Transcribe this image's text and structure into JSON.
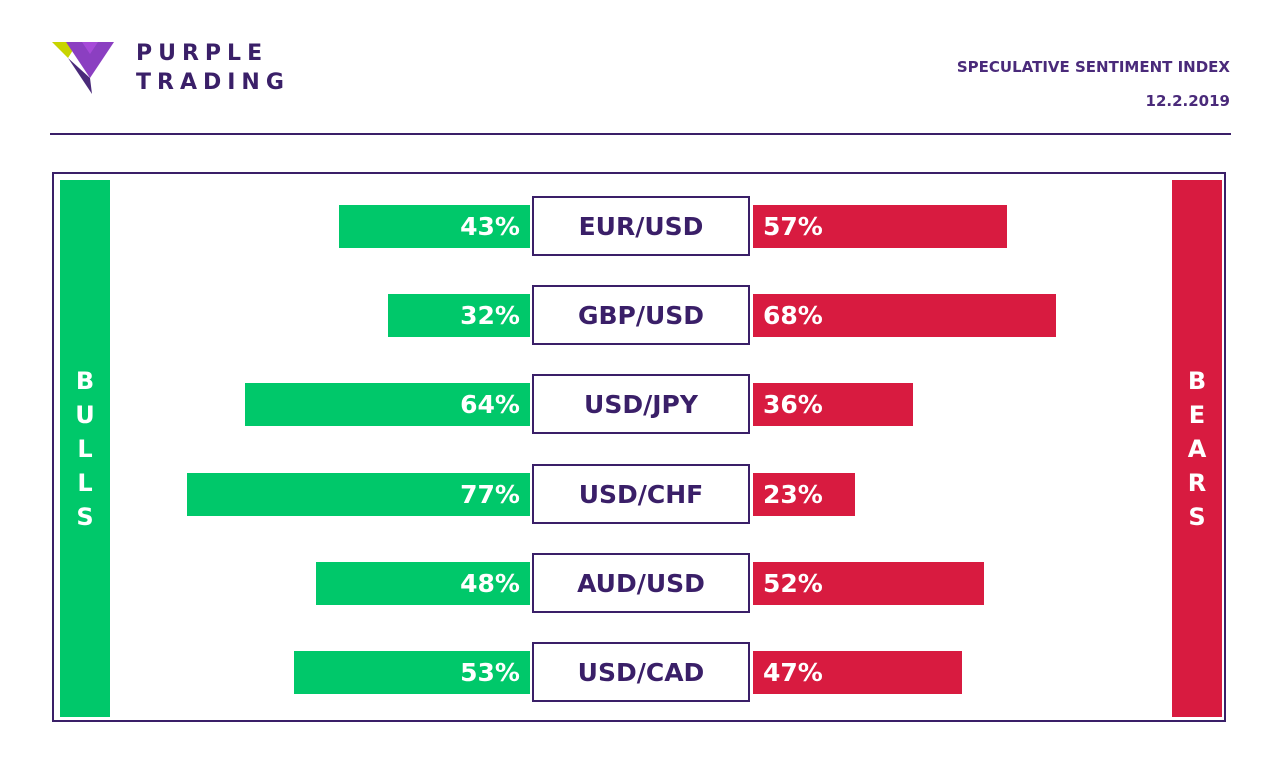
{
  "header": {
    "logo_line1": "PURPLE",
    "logo_line2": "TRADING",
    "title": "SPECULATIVE SENTIMENT INDEX",
    "date": "12.2.2019"
  },
  "sides": {
    "bulls_label": "BULLS",
    "bears_label": "BEARS"
  },
  "colors": {
    "bulls": "#00c86a",
    "bears": "#d81b40",
    "brand_purple": "#3a1f68"
  },
  "chart_data": {
    "type": "bar",
    "orientation": "diverging-horizontal",
    "categories": [
      "EUR/USD",
      "GBP/USD",
      "USD/JPY",
      "USD/CHF",
      "AUD/USD",
      "USD/CAD"
    ],
    "series": [
      {
        "name": "BULLS",
        "values": [
          43,
          32,
          64,
          77,
          48,
          53
        ],
        "labels": [
          "43%",
          "32%",
          "64%",
          "77%",
          "48%",
          "53%"
        ]
      },
      {
        "name": "BEARS",
        "values": [
          57,
          68,
          36,
          23,
          52,
          47
        ],
        "labels": [
          "57%",
          "68%",
          "36%",
          "23%",
          "52%",
          "47%"
        ]
      }
    ],
    "unit": "%"
  }
}
